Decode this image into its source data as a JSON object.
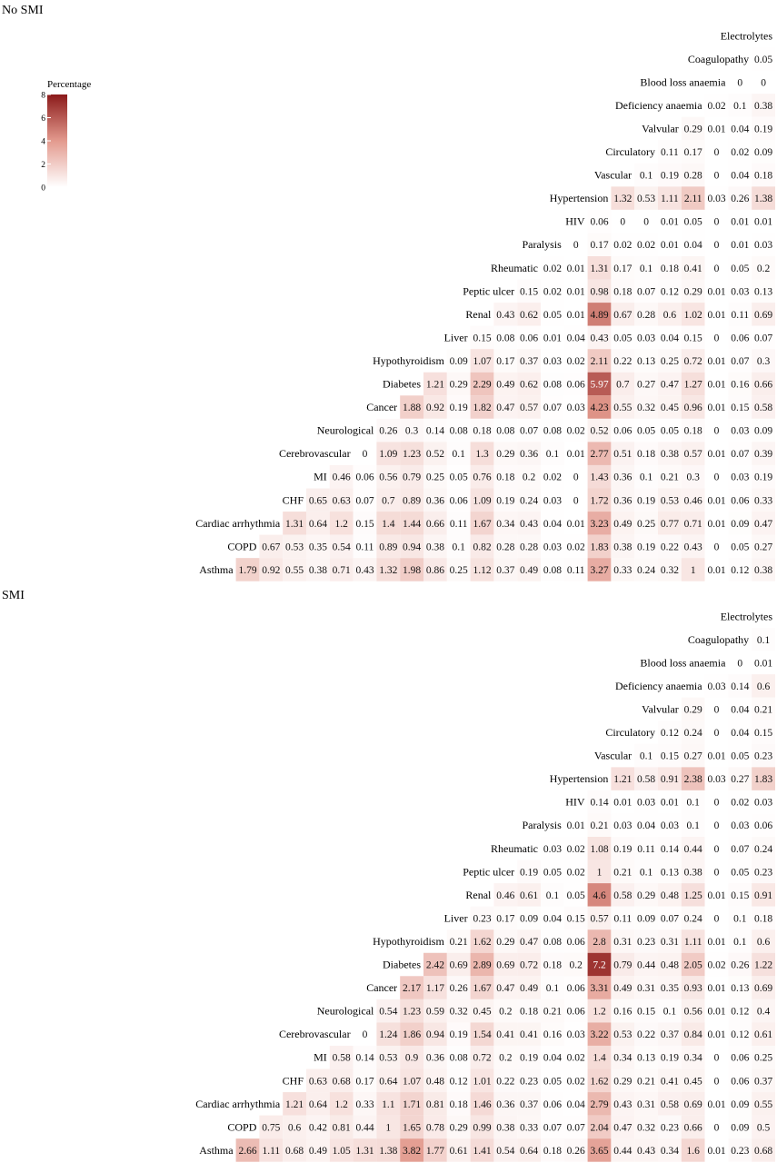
{
  "chart_data": [
    {
      "type": "heatmap",
      "title": "No SMI",
      "legend": {
        "title": "Percentage",
        "ticks": [
          0,
          2,
          4,
          6,
          8
        ],
        "range": [
          0,
          8
        ],
        "position": "top-left",
        "color_low": "#ffffff",
        "color_high": "#8b1a1a"
      },
      "rows": [
        "Electrolytes",
        "Coagulopathy",
        "Blood loss anaemia",
        "Deficiency anaemia",
        "Valvular",
        "Circulatory",
        "Vascular",
        "Hypertension",
        "HIV",
        "Paralysis",
        "Rheumatic",
        "Peptic ulcer",
        "Renal",
        "Liver",
        "Hypothyroidism",
        "Diabetes",
        "Cancer",
        "Neurological",
        "Cerebrovascular",
        "MI",
        "CHF",
        "Cardiac arrhythmia",
        "COPD",
        "Asthma"
      ],
      "values": [
        [],
        [
          0.05
        ],
        [
          0,
          0
        ],
        [
          0.02,
          0.1,
          0.38
        ],
        [
          0.29,
          0.01,
          0.04,
          0.19
        ],
        [
          0.11,
          0.17,
          0,
          0.02,
          0.09
        ],
        [
          0.1,
          0.19,
          0.28,
          0,
          0.04,
          0.18
        ],
        [
          1.32,
          0.53,
          1.11,
          2.11,
          0.03,
          0.26,
          1.38
        ],
        [
          0.06,
          0,
          0,
          0.01,
          0.05,
          0,
          0.01,
          0.01
        ],
        [
          0,
          0.17,
          0.02,
          0.02,
          0.01,
          0.04,
          0,
          0.01,
          0.03
        ],
        [
          0.02,
          0.01,
          1.31,
          0.17,
          0.1,
          0.18,
          0.41,
          0,
          0.05,
          0.2
        ],
        [
          0.15,
          0.02,
          0.01,
          0.98,
          0.18,
          0.07,
          0.12,
          0.29,
          0.01,
          0.03,
          0.13
        ],
        [
          0.43,
          0.62,
          0.05,
          0.01,
          4.89,
          0.67,
          0.28,
          0.6,
          1.02,
          0.01,
          0.11,
          0.69
        ],
        [
          0.15,
          0.08,
          0.06,
          0.01,
          0.04,
          0.43,
          0.05,
          0.03,
          0.04,
          0.15,
          0,
          0.06,
          0.07
        ],
        [
          0.09,
          1.07,
          0.17,
          0.37,
          0.03,
          0.02,
          2.11,
          0.22,
          0.13,
          0.25,
          0.72,
          0.01,
          0.07,
          0.3
        ],
        [
          1.21,
          0.29,
          2.29,
          0.49,
          0.62,
          0.08,
          0.06,
          5.97,
          0.7,
          0.27,
          0.47,
          1.27,
          0.01,
          0.16,
          0.66
        ],
        [
          1.88,
          0.92,
          0.19,
          1.82,
          0.47,
          0.57,
          0.07,
          0.03,
          4.23,
          0.55,
          0.32,
          0.45,
          0.96,
          0.01,
          0.15,
          0.58
        ],
        [
          0.26,
          0.3,
          0.14,
          0.08,
          0.18,
          0.08,
          0.07,
          0.08,
          0.02,
          0.52,
          0.06,
          0.05,
          0.05,
          0.18,
          0,
          0.03,
          0.09
        ],
        [
          0,
          1.09,
          1.23,
          0.52,
          0.1,
          1.3,
          0.29,
          0.36,
          0.1,
          0.01,
          2.77,
          0.51,
          0.18,
          0.38,
          0.57,
          0.01,
          0.07,
          0.39
        ],
        [
          0.46,
          0.06,
          0.56,
          0.79,
          0.25,
          0.05,
          0.76,
          0.18,
          0.2,
          0.02,
          0,
          1.43,
          0.36,
          0.1,
          0.21,
          0.3,
          0,
          0.03,
          0.19
        ],
        [
          0.65,
          0.63,
          0.07,
          0.7,
          0.89,
          0.36,
          0.06,
          1.09,
          0.19,
          0.24,
          0.03,
          0,
          1.72,
          0.36,
          0.19,
          0.53,
          0.46,
          0.01,
          0.06,
          0.33
        ],
        [
          1.31,
          0.64,
          1.2,
          0.15,
          1.4,
          1.44,
          0.66,
          0.11,
          1.67,
          0.34,
          0.43,
          0.04,
          0.01,
          3.23,
          0.49,
          0.25,
          0.77,
          0.71,
          0.01,
          0.09,
          0.47
        ],
        [
          0.67,
          0.53,
          0.35,
          0.54,
          0.11,
          0.89,
          0.94,
          0.38,
          0.1,
          0.82,
          0.28,
          0.28,
          0.03,
          0.02,
          1.83,
          0.38,
          0.19,
          0.22,
          0.43,
          0,
          0.05,
          0.27
        ],
        [
          1.79,
          0.92,
          0.55,
          0.38,
          0.71,
          0.43,
          1.32,
          1.98,
          0.86,
          0.25,
          1.12,
          0.37,
          0.49,
          0.08,
          0.11,
          3.27,
          0.33,
          0.24,
          0.32,
          1,
          0.01,
          0.12,
          0.38
        ]
      ]
    },
    {
      "type": "heatmap",
      "title": "SMI",
      "rows": [
        "Electrolytes",
        "Coagulopathy",
        "Blood loss anaemia",
        "Deficiency anaemia",
        "Valvular",
        "Circulatory",
        "Vascular",
        "Hypertension",
        "HIV",
        "Paralysis",
        "Rheumatic",
        "Peptic ulcer",
        "Renal",
        "Liver",
        "Hypothyroidism",
        "Diabetes",
        "Cancer",
        "Neurological",
        "Cerebrovascular",
        "MI",
        "CHF",
        "Cardiac arrhythmia",
        "COPD",
        "Asthma"
      ],
      "values": [
        [],
        [
          0.1
        ],
        [
          0,
          0.01
        ],
        [
          0.03,
          0.14,
          0.6
        ],
        [
          0.29,
          0,
          0.04,
          0.21
        ],
        [
          0.12,
          0.24,
          0,
          0.04,
          0.15
        ],
        [
          0.1,
          0.15,
          0.27,
          0.01,
          0.05,
          0.23
        ],
        [
          1.21,
          0.58,
          0.91,
          2.38,
          0.03,
          0.27,
          1.83
        ],
        [
          0.14,
          0.01,
          0.03,
          0.01,
          0.1,
          0,
          0.02,
          0.03
        ],
        [
          0.01,
          0.21,
          0.03,
          0.04,
          0.03,
          0.1,
          0,
          0.03,
          0.06
        ],
        [
          0.03,
          0.02,
          1.08,
          0.19,
          0.11,
          0.14,
          0.44,
          0,
          0.07,
          0.24
        ],
        [
          0.19,
          0.05,
          0.02,
          1,
          0.21,
          0.1,
          0.13,
          0.38,
          0,
          0.05,
          0.23
        ],
        [
          0.46,
          0.61,
          0.1,
          0.05,
          4.6,
          0.58,
          0.29,
          0.48,
          1.25,
          0.01,
          0.15,
          0.91
        ],
        [
          0.23,
          0.17,
          0.09,
          0.04,
          0.15,
          0.57,
          0.11,
          0.09,
          0.07,
          0.24,
          0,
          0.1,
          0.18
        ],
        [
          0.21,
          1.62,
          0.29,
          0.47,
          0.08,
          0.06,
          2.8,
          0.31,
          0.23,
          0.31,
          1.11,
          0.01,
          0.1,
          0.6
        ],
        [
          2.42,
          0.69,
          2.89,
          0.69,
          0.72,
          0.18,
          0.2,
          7.2,
          0.79,
          0.44,
          0.48,
          2.05,
          0.02,
          0.26,
          1.22
        ],
        [
          2.17,
          1.17,
          0.26,
          1.67,
          0.47,
          0.49,
          0.1,
          0.06,
          3.31,
          0.49,
          0.31,
          0.35,
          0.93,
          0.01,
          0.13,
          0.69
        ],
        [
          0.54,
          1.23,
          0.59,
          0.32,
          0.45,
          0.2,
          0.18,
          0.21,
          0.06,
          1.2,
          0.16,
          0.15,
          0.1,
          0.56,
          0.01,
          0.12,
          0.4
        ],
        [
          0,
          1.24,
          1.86,
          0.94,
          0.19,
          1.54,
          0.41,
          0.41,
          0.16,
          0.03,
          3.22,
          0.53,
          0.22,
          0.37,
          0.84,
          0.01,
          0.12,
          0.61
        ],
        [
          0.58,
          0.14,
          0.53,
          0.9,
          0.36,
          0.08,
          0.72,
          0.2,
          0.19,
          0.04,
          0.02,
          1.4,
          0.34,
          0.13,
          0.19,
          0.34,
          0,
          0.06,
          0.25
        ],
        [
          0.63,
          0.68,
          0.17,
          0.64,
          1.07,
          0.48,
          0.12,
          1.01,
          0.22,
          0.23,
          0.05,
          0.02,
          1.62,
          0.29,
          0.21,
          0.41,
          0.45,
          0,
          0.06,
          0.37
        ],
        [
          1.21,
          0.64,
          1.2,
          0.33,
          1.1,
          1.71,
          0.81,
          0.18,
          1.46,
          0.36,
          0.37,
          0.06,
          0.04,
          2.79,
          0.43,
          0.31,
          0.58,
          0.69,
          0.01,
          0.09,
          0.55
        ],
        [
          0.75,
          0.6,
          0.42,
          0.81,
          0.44,
          1,
          1.65,
          0.78,
          0.29,
          0.99,
          0.38,
          0.33,
          0.07,
          0.07,
          2.04,
          0.47,
          0.32,
          0.23,
          0.66,
          0,
          0.09,
          0.5
        ],
        [
          2.66,
          1.11,
          0.68,
          0.49,
          1.05,
          1.31,
          1.38,
          3.82,
          1.77,
          0.61,
          1.41,
          0.54,
          0.64,
          0.18,
          0.26,
          3.65,
          0.44,
          0.43,
          0.34,
          1.6,
          0.01,
          0.23,
          0.68
        ]
      ]
    }
  ]
}
